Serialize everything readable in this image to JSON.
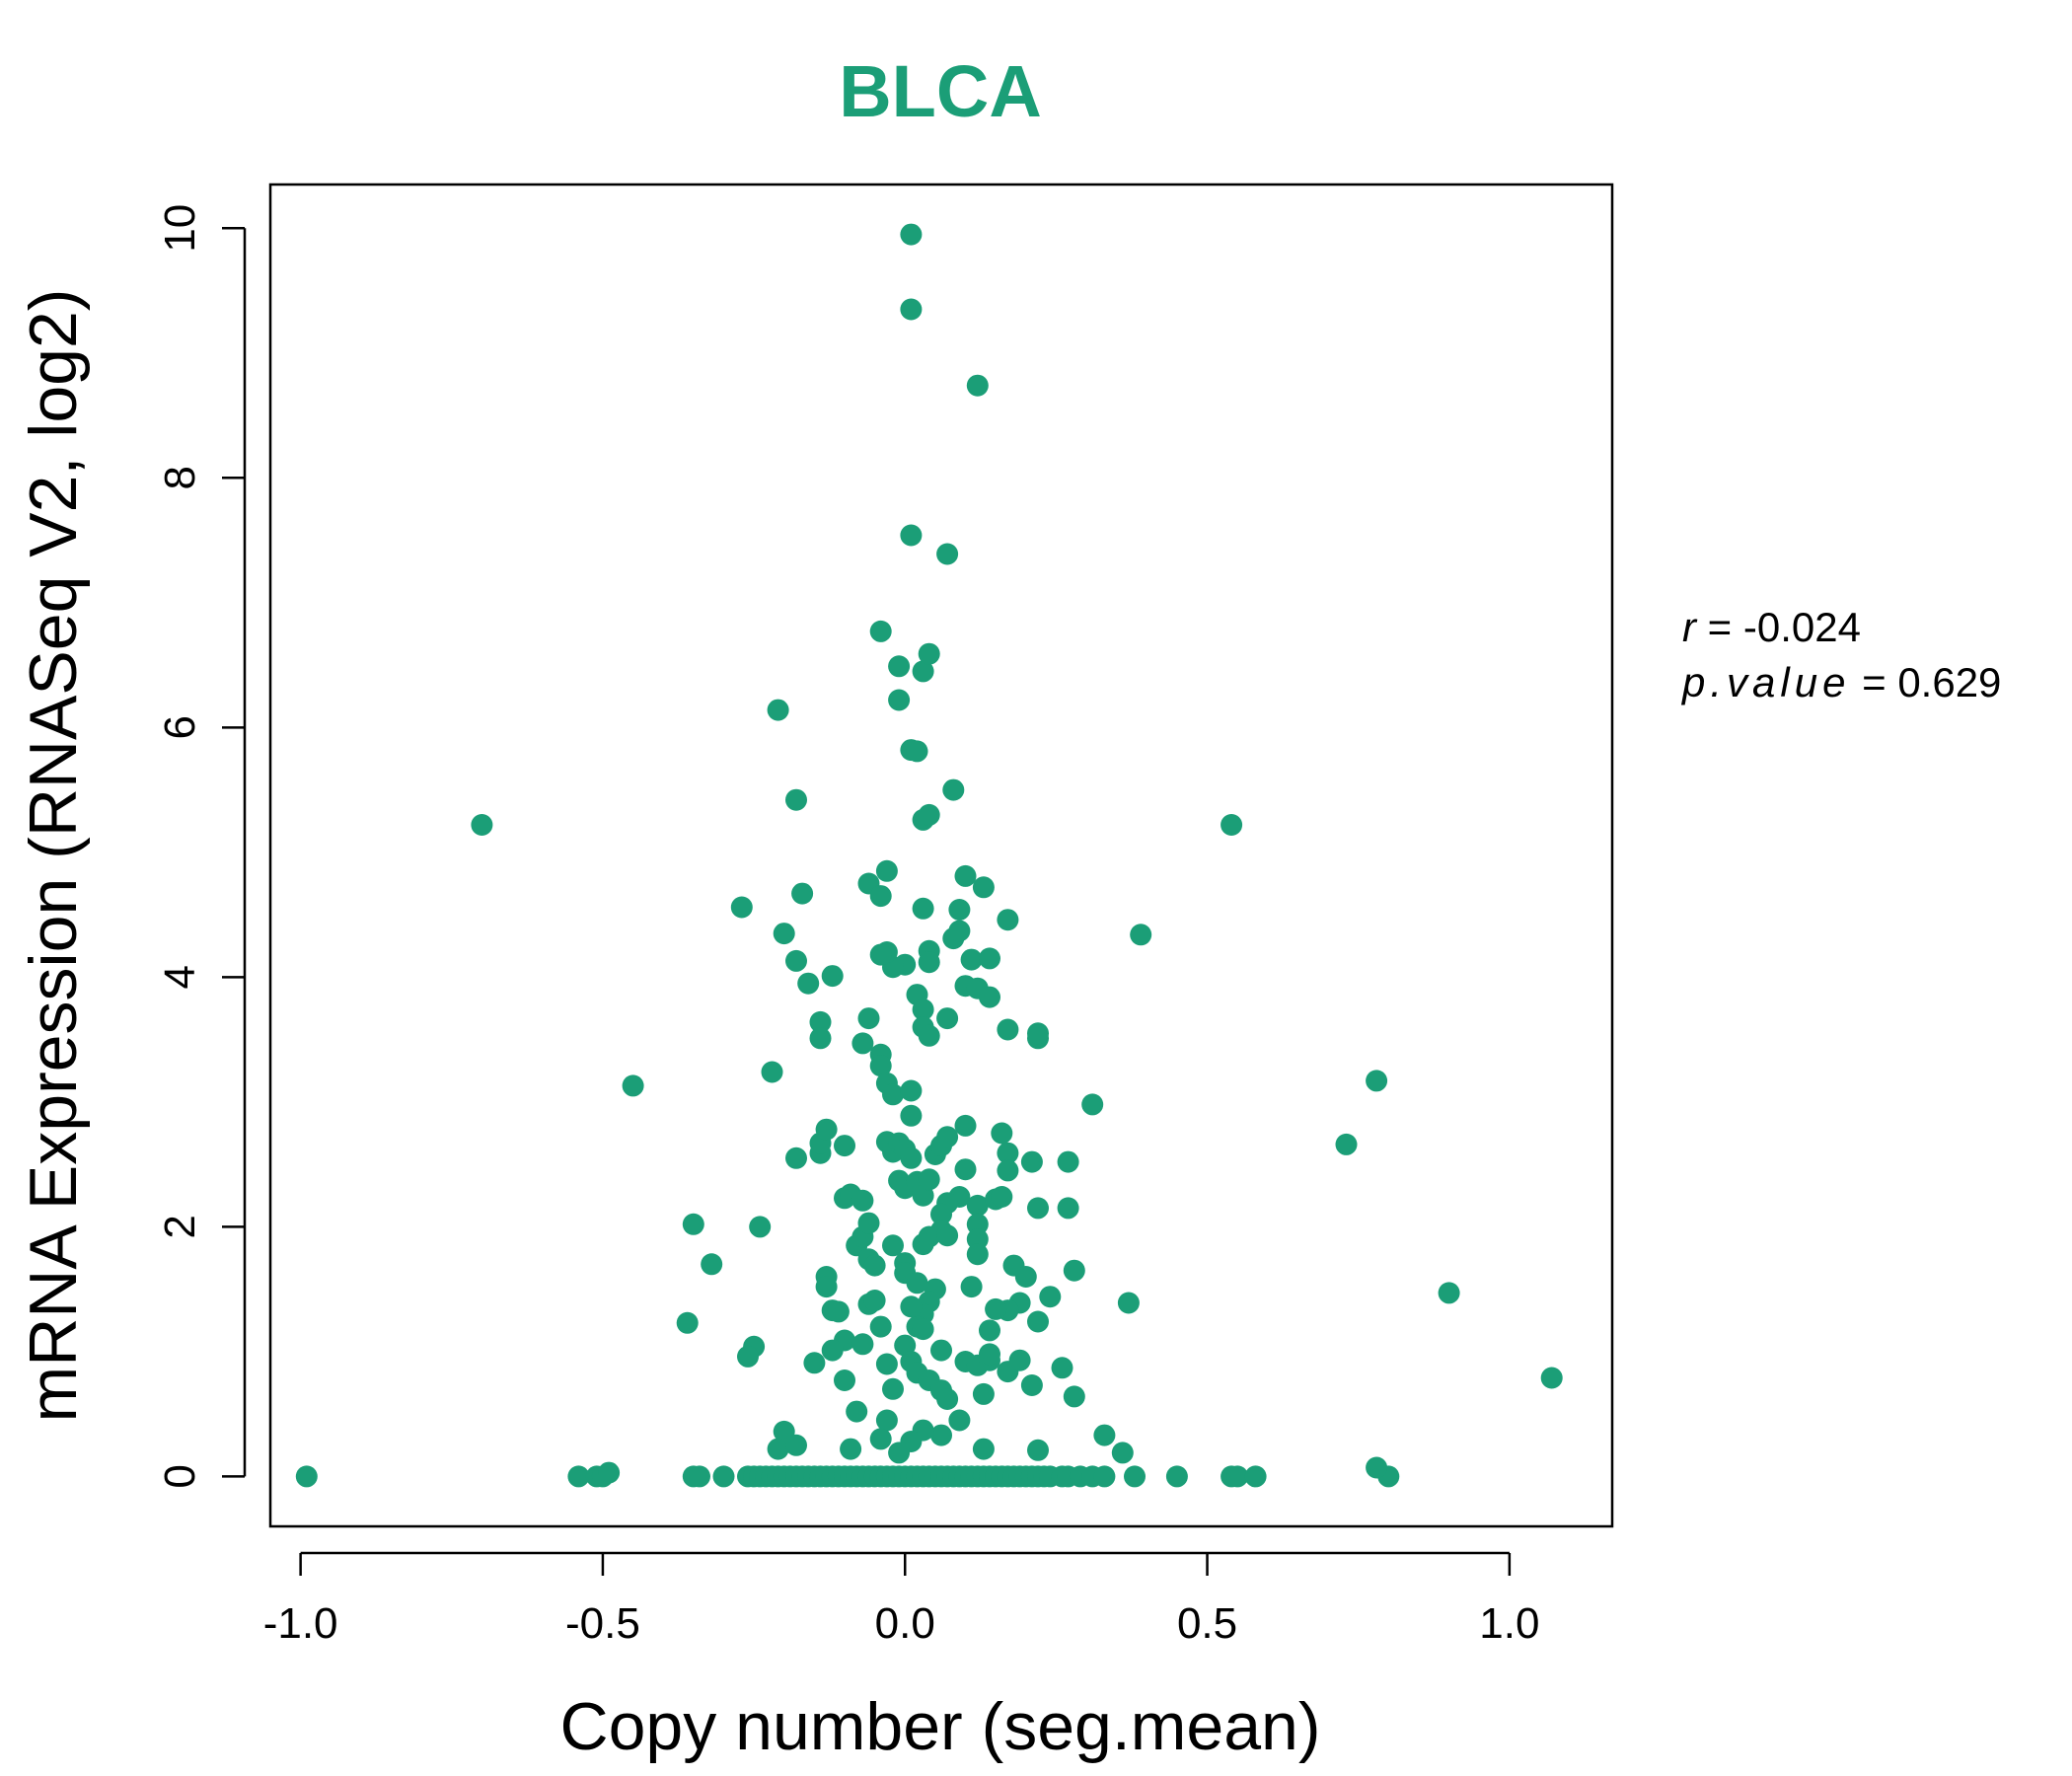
{
  "chart_data": {
    "type": "scatter",
    "title": "BLCA",
    "xlabel": "Copy number (seg.mean)",
    "ylabel": "mRNA Expression (RNASeq V2, log2)",
    "xlim": [
      -1.05,
      1.17
    ],
    "ylim": [
      -0.4,
      10.35
    ],
    "xticks": [
      -1.0,
      -0.5,
      0.0,
      0.5,
      1.0
    ],
    "xtick_labels": [
      "-1.0",
      "-0.5",
      "0.0",
      "0.5",
      "1.0"
    ],
    "yticks": [
      0,
      2,
      4,
      6,
      8,
      10
    ],
    "ytick_labels": [
      "0",
      "2",
      "4",
      "6",
      "8",
      "10"
    ],
    "grid": false,
    "point_color": "#1b9e77",
    "title_color": "#1b9e77",
    "stats": {
      "r_label": "r",
      "r_value": "-0.024",
      "p_label": "p.value",
      "p_value": "0.629"
    },
    "series": [
      {
        "points": [
          [
            -0.99,
            0.0
          ],
          [
            -0.54,
            0.0
          ],
          [
            -0.51,
            0.0
          ],
          [
            -0.5,
            0.0
          ],
          [
            -0.49,
            0.03
          ],
          [
            -0.35,
            0.0
          ],
          [
            -0.34,
            0.0
          ],
          [
            -0.3,
            0.0
          ],
          [
            -0.26,
            0.0
          ],
          [
            -0.25,
            0.0
          ],
          [
            -0.24,
            0.0
          ],
          [
            -0.23,
            0.0
          ],
          [
            -0.22,
            0.0
          ],
          [
            -0.21,
            0.0
          ],
          [
            -0.2,
            0.0
          ],
          [
            -0.19,
            0.0
          ],
          [
            -0.18,
            0.0
          ],
          [
            -0.17,
            0.0
          ],
          [
            -0.16,
            0.0
          ],
          [
            -0.15,
            0.0
          ],
          [
            -0.14,
            0.0
          ],
          [
            -0.13,
            0.0
          ],
          [
            -0.12,
            0.0
          ],
          [
            -0.11,
            0.0
          ],
          [
            -0.1,
            0.0
          ],
          [
            -0.09,
            0.0
          ],
          [
            -0.08,
            0.0
          ],
          [
            -0.07,
            0.0
          ],
          [
            -0.06,
            0.0
          ],
          [
            -0.05,
            0.0
          ],
          [
            -0.04,
            0.0
          ],
          [
            -0.03,
            0.0
          ],
          [
            -0.02,
            0.0
          ],
          [
            -0.01,
            0.0
          ],
          [
            0.0,
            0.0
          ],
          [
            0.01,
            0.0
          ],
          [
            0.02,
            0.0
          ],
          [
            0.03,
            0.0
          ],
          [
            0.04,
            0.0
          ],
          [
            0.05,
            0.0
          ],
          [
            0.06,
            0.0
          ],
          [
            0.07,
            0.0
          ],
          [
            0.08,
            0.0
          ],
          [
            0.09,
            0.0
          ],
          [
            0.1,
            0.0
          ],
          [
            0.11,
            0.0
          ],
          [
            0.12,
            0.0
          ],
          [
            0.13,
            0.0
          ],
          [
            0.14,
            0.0
          ],
          [
            0.15,
            0.0
          ],
          [
            0.16,
            0.0
          ],
          [
            0.17,
            0.0
          ],
          [
            0.18,
            0.0
          ],
          [
            0.19,
            0.0
          ],
          [
            0.2,
            0.0
          ],
          [
            0.21,
            0.0
          ],
          [
            0.22,
            0.0
          ],
          [
            0.23,
            0.0
          ],
          [
            0.24,
            0.0
          ],
          [
            0.26,
            0.0
          ],
          [
            0.27,
            0.0
          ],
          [
            0.29,
            0.0
          ],
          [
            0.31,
            0.0
          ],
          [
            0.33,
            0.0
          ],
          [
            0.38,
            0.0
          ],
          [
            0.45,
            0.0
          ],
          [
            0.54,
            0.0
          ],
          [
            0.55,
            0.0
          ],
          [
            0.58,
            0.0
          ],
          [
            0.8,
            0.0
          ],
          [
            0.78,
            0.07
          ],
          [
            1.07,
            0.79
          ],
          [
            0.9,
            1.47
          ],
          [
            0.73,
            2.66
          ],
          [
            0.78,
            3.17
          ],
          [
            0.54,
            5.22
          ],
          [
            0.39,
            4.34
          ],
          [
            -0.7,
            5.22
          ],
          [
            -0.45,
            3.13
          ],
          [
            -0.35,
            2.02
          ],
          [
            -0.32,
            1.7
          ],
          [
            -0.36,
            1.23
          ],
          [
            -0.25,
            1.04
          ],
          [
            -0.26,
            0.96
          ],
          [
            -0.24,
            2.0
          ],
          [
            -0.22,
            3.24
          ],
          [
            -0.27,
            4.56
          ],
          [
            -0.21,
            6.14
          ],
          [
            -0.18,
            5.42
          ],
          [
            -0.17,
            4.67
          ],
          [
            -0.2,
            4.35
          ],
          [
            -0.18,
            4.13
          ],
          [
            -0.16,
            3.95
          ],
          [
            -0.14,
            3.64
          ],
          [
            -0.14,
            3.51
          ],
          [
            -0.12,
            4.01
          ],
          [
            -0.18,
            2.55
          ],
          [
            -0.14,
            2.59
          ],
          [
            -0.14,
            2.67
          ],
          [
            -0.13,
            2.78
          ],
          [
            -0.1,
            2.65
          ],
          [
            -0.1,
            2.23
          ],
          [
            -0.09,
            2.26
          ],
          [
            -0.07,
            2.21
          ],
          [
            -0.08,
            1.85
          ],
          [
            -0.07,
            1.92
          ],
          [
            -0.06,
            2.03
          ],
          [
            -0.06,
            1.74
          ],
          [
            -0.05,
            1.69
          ],
          [
            -0.13,
            1.6
          ],
          [
            -0.13,
            1.52
          ],
          [
            -0.12,
            1.33
          ],
          [
            -0.11,
            1.32
          ],
          [
            -0.1,
            1.09
          ],
          [
            -0.12,
            1.01
          ],
          [
            -0.15,
            0.91
          ],
          [
            -0.1,
            0.77
          ],
          [
            -0.08,
            0.52
          ],
          [
            -0.07,
            1.06
          ],
          [
            -0.06,
            1.38
          ],
          [
            -0.05,
            1.41
          ],
          [
            -0.04,
            1.2
          ],
          [
            -0.03,
            0.9
          ],
          [
            -0.02,
            0.7
          ],
          [
            -0.03,
            0.45
          ],
          [
            -0.04,
            0.3
          ],
          [
            -0.09,
            0.22
          ],
          [
            -0.2,
            0.36
          ],
          [
            -0.21,
            0.22
          ],
          [
            -0.18,
            0.25
          ],
          [
            -0.07,
            3.47
          ],
          [
            -0.06,
            3.67
          ],
          [
            -0.04,
            3.38
          ],
          [
            -0.04,
            3.29
          ],
          [
            -0.03,
            3.15
          ],
          [
            -0.02,
            3.06
          ],
          [
            0.01,
            3.09
          ],
          [
            0.01,
            2.89
          ],
          [
            -0.03,
            2.68
          ],
          [
            -0.02,
            2.6
          ],
          [
            -0.01,
            2.67
          ],
          [
            0.0,
            2.62
          ],
          [
            0.01,
            2.55
          ],
          [
            -0.01,
            2.37
          ],
          [
            0.0,
            2.31
          ],
          [
            0.02,
            2.36
          ],
          [
            0.03,
            2.25
          ],
          [
            0.04,
            2.38
          ],
          [
            0.05,
            2.58
          ],
          [
            0.06,
            2.65
          ],
          [
            0.07,
            2.72
          ],
          [
            0.1,
            2.81
          ],
          [
            0.16,
            2.75
          ],
          [
            0.17,
            2.59
          ],
          [
            0.21,
            2.52
          ],
          [
            0.27,
            2.52
          ],
          [
            0.31,
            2.98
          ],
          [
            0.1,
            2.46
          ],
          [
            0.09,
            2.24
          ],
          [
            0.07,
            2.19
          ],
          [
            0.06,
            2.1
          ],
          [
            0.06,
            1.97
          ],
          [
            0.04,
            1.92
          ],
          [
            0.03,
            1.86
          ],
          [
            0.07,
            1.93
          ],
          [
            0.12,
            2.17
          ],
          [
            0.15,
            2.22
          ],
          [
            0.16,
            2.24
          ],
          [
            0.17,
            2.45
          ],
          [
            0.12,
            2.02
          ],
          [
            0.12,
            1.9
          ],
          [
            0.12,
            1.78
          ],
          [
            0.18,
            1.69
          ],
          [
            0.2,
            1.6
          ],
          [
            0.24,
            1.44
          ],
          [
            0.19,
            1.39
          ],
          [
            0.17,
            1.33
          ],
          [
            0.15,
            1.34
          ],
          [
            0.14,
            1.17
          ],
          [
            0.11,
            1.52
          ],
          [
            0.05,
            1.5
          ],
          [
            0.04,
            1.4
          ],
          [
            0.03,
            1.3
          ],
          [
            0.02,
            1.2
          ],
          [
            0.0,
            1.05
          ],
          [
            0.01,
            0.92
          ],
          [
            0.02,
            0.83
          ],
          [
            0.04,
            0.77
          ],
          [
            0.06,
            0.69
          ],
          [
            0.07,
            0.62
          ],
          [
            0.09,
            0.45
          ],
          [
            0.1,
            0.92
          ],
          [
            0.12,
            0.89
          ],
          [
            0.14,
            0.93
          ],
          [
            0.17,
            0.84
          ],
          [
            0.19,
            0.93
          ],
          [
            0.21,
            0.73
          ],
          [
            0.26,
            0.87
          ],
          [
            0.28,
            0.64
          ],
          [
            0.22,
            1.24
          ],
          [
            0.28,
            1.65
          ],
          [
            0.22,
            2.15
          ],
          [
            0.27,
            2.15
          ],
          [
            0.0,
            1.71
          ],
          [
            -0.02,
            1.85
          ],
          [
            0.0,
            1.63
          ],
          [
            0.02,
            1.55
          ],
          [
            0.01,
            1.36
          ],
          [
            0.03,
            1.18
          ],
          [
            0.06,
            1.01
          ],
          [
            0.13,
            0.66
          ],
          [
            0.14,
            0.98
          ],
          [
            0.22,
            0.21
          ],
          [
            0.13,
            0.22
          ],
          [
            0.06,
            0.33
          ],
          [
            0.03,
            0.37
          ],
          [
            0.01,
            0.28
          ],
          [
            -0.01,
            0.19
          ],
          [
            0.33,
            0.33
          ],
          [
            0.36,
            0.19
          ],
          [
            0.37,
            1.39
          ],
          [
            0.0,
            4.1
          ],
          [
            -0.02,
            4.08
          ],
          [
            -0.03,
            4.2
          ],
          [
            -0.04,
            4.18
          ],
          [
            -0.06,
            4.75
          ],
          [
            -0.04,
            4.65
          ],
          [
            -0.03,
            4.85
          ],
          [
            0.03,
            4.55
          ],
          [
            0.04,
            4.21
          ],
          [
            0.04,
            4.12
          ],
          [
            0.02,
            3.86
          ],
          [
            0.03,
            3.74
          ],
          [
            0.03,
            3.6
          ],
          [
            0.04,
            3.53
          ],
          [
            0.07,
            3.67
          ],
          [
            0.1,
            3.93
          ],
          [
            0.12,
            3.91
          ],
          [
            0.14,
            3.84
          ],
          [
            0.11,
            4.14
          ],
          [
            0.14,
            4.15
          ],
          [
            0.08,
            4.31
          ],
          [
            0.09,
            4.37
          ],
          [
            0.09,
            4.54
          ],
          [
            0.1,
            4.81
          ],
          [
            0.13,
            4.72
          ],
          [
            0.17,
            4.46
          ],
          [
            0.17,
            3.58
          ],
          [
            0.22,
            3.51
          ],
          [
            0.22,
            3.55
          ],
          [
            0.03,
            5.26
          ],
          [
            0.04,
            5.3
          ],
          [
            0.01,
            5.82
          ],
          [
            0.02,
            5.81
          ],
          [
            0.08,
            5.5
          ],
          [
            -0.01,
            6.22
          ],
          [
            -0.01,
            6.49
          ],
          [
            0.03,
            6.45
          ],
          [
            0.04,
            6.59
          ],
          [
            -0.04,
            6.77
          ],
          [
            0.01,
            7.54
          ],
          [
            0.07,
            7.39
          ],
          [
            0.12,
            8.74
          ],
          [
            0.01,
            9.35
          ],
          [
            0.01,
            9.95
          ]
        ]
      }
    ]
  }
}
